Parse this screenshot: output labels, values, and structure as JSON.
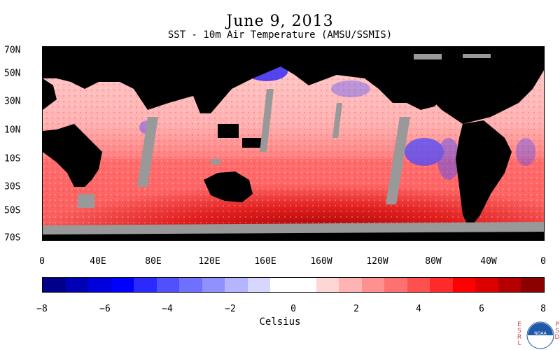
{
  "title": "June 9, 2013",
  "subtitle": "SST - 10m Air Temperature (AMSU/SSMIS)",
  "lat_labels": [
    "70N",
    "50N",
    "30N",
    "10N",
    "10S",
    "30S",
    "50S",
    "70S"
  ],
  "lon_labels": [
    "0",
    "40E",
    "80E",
    "120E",
    "160E",
    "160W",
    "120W",
    "80W",
    "40W",
    "0"
  ],
  "colorbar": {
    "ticks": [
      "−8",
      "−6",
      "−4",
      "−2",
      "0",
      "2",
      "4",
      "6",
      "8"
    ],
    "label": "Celsius",
    "colors": [
      "#00008b",
      "#0000b4",
      "#0000dc",
      "#0000ff",
      "#2a2aff",
      "#5050ff",
      "#7070ff",
      "#9090ff",
      "#b4b4ff",
      "#d6d6ff",
      "#ffffff",
      "#ffffff",
      "#ffd6d6",
      "#ffb4b4",
      "#ff9090",
      "#ff7070",
      "#ff5050",
      "#ff2a2a",
      "#ff0000",
      "#dc0000",
      "#b40000",
      "#8b0000"
    ]
  },
  "colors": {
    "land": "#000000",
    "missing": "#999999",
    "positive": "#ff4a4a",
    "negative": "#4a4aff"
  },
  "logo": {
    "left_text": "ESRL",
    "right_text": "PSD",
    "center_text": "NOAA"
  }
}
